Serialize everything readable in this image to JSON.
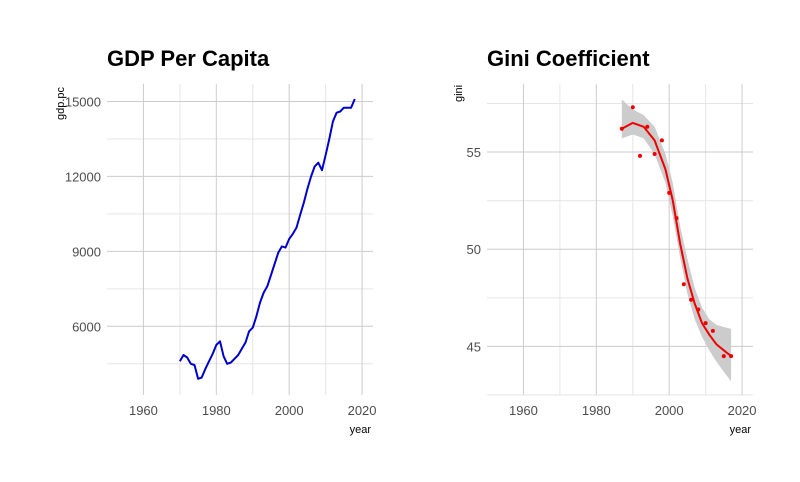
{
  "chart_data": [
    {
      "type": "line",
      "title": "GDP Per Capita",
      "xlabel": "year",
      "ylabel": "gdp.pc",
      "xlim": [
        1950,
        2023
      ],
      "ylim": [
        3250,
        15700
      ],
      "xticks": [
        1960,
        1980,
        2000,
        2020
      ],
      "yticks": [
        6000,
        9000,
        12000,
        15000
      ],
      "ytick_labels": [
        "6000",
        "9000",
        "12000",
        "15000"
      ],
      "grid": true,
      "legend": "none",
      "color": "#0000cc",
      "series": [
        {
          "x": [
            1970,
            1971,
            1972,
            1973,
            1974,
            1975,
            1976,
            1977,
            1978,
            1979,
            1980,
            1981,
            1982,
            1983,
            1984,
            1985,
            1986,
            1987,
            1988,
            1989,
            1990,
            1991,
            1992,
            1993,
            1994,
            1995,
            1996,
            1997,
            1998,
            1999,
            2000,
            2001,
            2002,
            2003,
            2004,
            2005,
            2006,
            2007,
            2008,
            2009,
            2010,
            2011,
            2012,
            2013,
            2014,
            2015,
            2016,
            2017,
            2018
          ],
          "y": [
            4600,
            4850,
            4750,
            4500,
            4450,
            3900,
            3950,
            4300,
            4600,
            4900,
            5250,
            5400,
            4800,
            4500,
            4550,
            4700,
            4850,
            5100,
            5350,
            5800,
            5950,
            6400,
            6950,
            7350,
            7600,
            8050,
            8500,
            8950,
            9200,
            9150,
            9500,
            9700,
            9950,
            10450,
            10950,
            11500,
            12000,
            12400,
            12550,
            12250,
            12850,
            13500,
            14200,
            14550,
            14600,
            14750,
            14750,
            14750,
            15100
          ]
        }
      ]
    },
    {
      "type": "scatter",
      "title": "Gini Coefficient",
      "xlabel": "year",
      "ylabel": "gini",
      "xlim": [
        1950,
        2023
      ],
      "ylim": [
        42.5,
        58.5
      ],
      "xticks": [
        1960,
        1980,
        2000,
        2020
      ],
      "yticks": [
        45,
        50,
        55
      ],
      "grid": true,
      "legend": "none",
      "color": "#ee0000",
      "points": {
        "x": [
          1987,
          1990,
          1992,
          1994,
          1996,
          1998,
          2000,
          2002,
          2004,
          2006,
          2008,
          2010,
          2012,
          2015,
          2017
        ],
        "y": [
          56.2,
          57.3,
          54.8,
          56.3,
          54.9,
          55.6,
          52.9,
          51.6,
          48.2,
          47.4,
          46.9,
          46.2,
          45.8,
          44.5,
          44.5
        ]
      },
      "smooth": {
        "x": [
          1987,
          1990,
          1993,
          1996,
          1999,
          2001,
          2003,
          2005,
          2007,
          2009,
          2011,
          2013,
          2015,
          2017
        ],
        "y": [
          56.2,
          56.5,
          56.3,
          55.6,
          54.1,
          52.5,
          50.3,
          48.5,
          47.2,
          46.2,
          45.6,
          45.1,
          44.8,
          44.5
        ],
        "lower": [
          55.7,
          55.9,
          55.7,
          54.9,
          53.4,
          51.7,
          49.6,
          47.7,
          46.4,
          45.5,
          44.8,
          44.2,
          43.7,
          43.2
        ],
        "upper": [
          57.7,
          57.2,
          56.9,
          56.3,
          54.9,
          53.4,
          51.2,
          49.5,
          48.0,
          47.0,
          46.4,
          46.1,
          46.0,
          45.9
        ],
        "band_color": "#cccccc",
        "line_color": "#ee0000"
      }
    }
  ]
}
